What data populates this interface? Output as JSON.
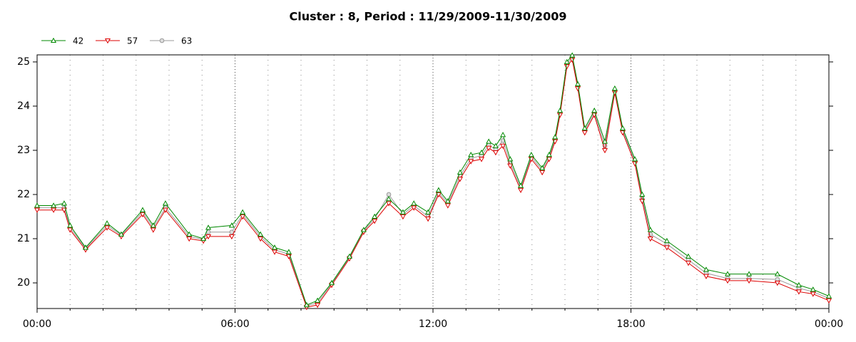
{
  "chart_data": {
    "type": "line",
    "title": "Cluster : 8, Period : 11/29/2009-11/30/2009",
    "x": [
      0,
      0.5,
      0.82,
      1.0,
      1.47,
      2.12,
      2.55,
      3.2,
      3.52,
      3.89,
      4.61,
      5.04,
      5.19,
      5.9,
      6.23,
      6.77,
      7.2,
      7.63,
      8.17,
      8.5,
      8.93,
      9.47,
      9.9,
      10.23,
      10.66,
      11.09,
      11.42,
      11.85,
      12.17,
      12.45,
      12.82,
      13.15,
      13.47,
      13.69,
      13.9,
      14.12,
      14.34,
      14.66,
      14.98,
      15.31,
      15.52,
      15.7,
      15.85,
      16.06,
      16.22,
      16.39,
      16.6,
      16.89,
      17.21,
      17.51,
      17.75,
      18.12,
      18.34,
      18.59,
      19.09,
      19.74,
      20.28,
      20.93,
      21.58,
      22.44,
      23.09,
      23.52,
      24
    ],
    "series": [
      {
        "name": "63",
        "color": "#999999",
        "marker": "circle",
        "values": [
          21.7,
          21.7,
          21.7,
          21.25,
          20.78,
          21.3,
          21.08,
          21.6,
          21.25,
          21.7,
          21.05,
          20.98,
          21.15,
          21.15,
          21.55,
          21.05,
          20.75,
          20.65,
          19.48,
          19.55,
          19.98,
          20.58,
          21.18,
          21.45,
          22.0,
          21.55,
          21.75,
          21.5,
          22.05,
          21.8,
          22.42,
          22.82,
          22.88,
          23.12,
          23.02,
          23.22,
          22.72,
          22.15,
          22.85,
          22.55,
          22.85,
          23.25,
          23.85,
          24.95,
          25.1,
          24.45,
          23.45,
          23.85,
          23.1,
          24.35,
          23.45,
          22.75,
          21.92,
          21.1,
          20.88,
          20.52,
          20.22,
          20.1,
          20.1,
          20.08,
          19.88,
          19.8,
          19.65
        ]
      },
      {
        "name": "57",
        "color": "#dd0000",
        "marker": "triangle-down",
        "values": [
          21.65,
          21.65,
          21.65,
          21.2,
          20.75,
          21.25,
          21.05,
          21.55,
          21.2,
          21.65,
          21.0,
          20.95,
          21.05,
          21.05,
          21.5,
          21.0,
          20.7,
          20.6,
          19.45,
          19.5,
          19.95,
          20.55,
          21.15,
          21.4,
          21.8,
          21.5,
          21.7,
          21.45,
          22.0,
          21.75,
          22.35,
          22.75,
          22.8,
          23.05,
          22.95,
          23.1,
          22.65,
          22.1,
          22.8,
          22.5,
          22.8,
          23.2,
          23.8,
          24.9,
          25.05,
          24.4,
          23.4,
          23.8,
          23.0,
          24.3,
          23.4,
          22.7,
          21.85,
          21.0,
          20.8,
          20.45,
          20.15,
          20.05,
          20.05,
          20.0,
          19.8,
          19.75,
          19.6
        ]
      },
      {
        "name": "42",
        "color": "#008800",
        "marker": "triangle-up",
        "values": [
          21.75,
          21.75,
          21.8,
          21.3,
          20.8,
          21.35,
          21.1,
          21.65,
          21.3,
          21.8,
          21.1,
          21.0,
          21.25,
          21.3,
          21.6,
          21.1,
          20.8,
          20.7,
          19.5,
          19.6,
          20.0,
          20.6,
          21.2,
          21.5,
          21.9,
          21.6,
          21.8,
          21.6,
          22.1,
          21.85,
          22.5,
          22.9,
          22.95,
          23.2,
          23.1,
          23.35,
          22.8,
          22.2,
          22.9,
          22.6,
          22.9,
          23.3,
          23.9,
          25.0,
          25.15,
          24.5,
          23.5,
          23.9,
          23.2,
          24.4,
          23.5,
          22.8,
          22.0,
          21.2,
          20.95,
          20.6,
          20.3,
          20.2,
          20.2,
          20.2,
          19.95,
          19.85,
          19.7
        ]
      }
    ],
    "legend_order": [
      2,
      1,
      0
    ],
    "xlim": [
      0,
      24
    ],
    "xticks": [
      {
        "value": 0,
        "label": "00:00"
      },
      {
        "value": 6,
        "label": "06:00"
      },
      {
        "value": 12,
        "label": "12:00"
      },
      {
        "value": 18,
        "label": "18:00"
      },
      {
        "value": 24,
        "label": "00:00"
      }
    ],
    "x_minor_divisions": 6,
    "ylim": [
      19.42,
      25.16
    ],
    "yticks": [
      20,
      21,
      22,
      23,
      24,
      25
    ],
    "grid": true,
    "legend": "top-left"
  }
}
